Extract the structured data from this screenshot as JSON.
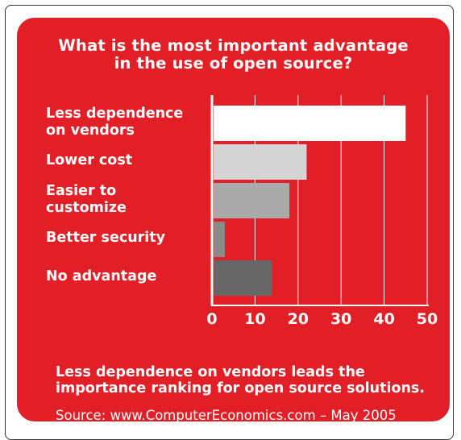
{
  "title": "What is the most important advantage\nin the use of open source?",
  "colors": {
    "background": "#e21f26",
    "bars": [
      "#ffffff",
      "#d4d4d4",
      "#aaaaaa",
      "#8a8a8a",
      "#666666"
    ],
    "grid": "#ffffff",
    "text": "#ffffff"
  },
  "chart_data": {
    "type": "bar",
    "orientation": "horizontal",
    "categories": [
      "Less dependence\non vendors",
      "Lower cost",
      "Easier to\ncustomize",
      "Better security",
      "No advantage"
    ],
    "values": [
      45,
      22,
      18,
      3,
      14
    ],
    "xlim": [
      0,
      50
    ],
    "xticks": [
      "0",
      "10",
      "20",
      "30",
      "40",
      "50"
    ],
    "grid": true
  },
  "caption": "Less dependence on vendors leads the\nimportance ranking for open source solutions.",
  "source": "Source: www.ComputerEconomics.com – May 2005"
}
